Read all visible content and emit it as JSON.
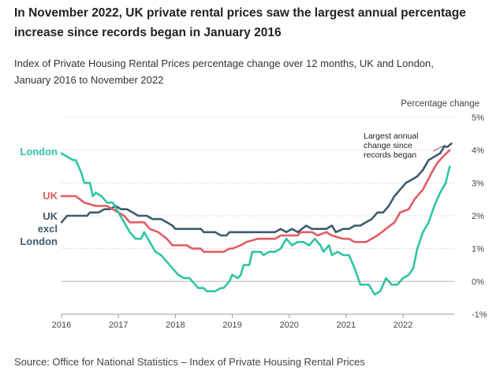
{
  "header": {
    "title": "In November 2022, UK private rental prices saw the largest annual percentage increase since records began in January 2016",
    "subtitle": "Index of Private Housing Rental Prices percentage change over 12 months, UK and London, January 2016 to November 2022"
  },
  "footer": {
    "source": "Source: Office for National Statistics – Index of Private Housing Rental Prices"
  },
  "chart_data": {
    "type": "line",
    "title": "",
    "ylabel": "Percentage change",
    "xlabel": "",
    "ylim": [
      -1,
      5
    ],
    "xlim": [
      2016,
      2022.9
    ],
    "y_ticks": [
      5,
      4,
      3,
      2,
      1,
      0,
      -1
    ],
    "y_tick_labels": [
      "5%",
      "4%",
      "3%",
      "2%",
      "1%",
      "0%",
      "-1%"
    ],
    "x_ticks": [
      2016,
      2017,
      2018,
      2019,
      2020,
      2021,
      2022
    ],
    "x_tick_labels": [
      "2016",
      "2017",
      "2018",
      "2019",
      "2020",
      "2021",
      "2022"
    ],
    "annotation": "Largest annual change since records began",
    "series": [
      {
        "name": "London",
        "color": "#2ec4a4",
        "label_lines": [
          "London"
        ],
        "points": [
          [
            2016.0,
            3.9
          ],
          [
            2016.1,
            3.8
          ],
          [
            2016.2,
            3.7
          ],
          [
            2016.25,
            3.7
          ],
          [
            2016.35,
            3.3
          ],
          [
            2016.4,
            3.0
          ],
          [
            2016.5,
            3.0
          ],
          [
            2016.55,
            2.6
          ],
          [
            2016.6,
            2.7
          ],
          [
            2016.7,
            2.6
          ],
          [
            2016.8,
            2.4
          ],
          [
            2016.9,
            2.4
          ],
          [
            2017.0,
            2.1
          ],
          [
            2017.1,
            1.8
          ],
          [
            2017.2,
            1.5
          ],
          [
            2017.3,
            1.3
          ],
          [
            2017.4,
            1.3
          ],
          [
            2017.45,
            1.5
          ],
          [
            2017.55,
            1.2
          ],
          [
            2017.65,
            0.9
          ],
          [
            2017.75,
            0.8
          ],
          [
            2017.85,
            0.6
          ],
          [
            2017.95,
            0.4
          ],
          [
            2018.05,
            0.2
          ],
          [
            2018.15,
            0.1
          ],
          [
            2018.25,
            0.1
          ],
          [
            2018.3,
            0.0
          ],
          [
            2018.4,
            -0.2
          ],
          [
            2018.5,
            -0.2
          ],
          [
            2018.55,
            -0.3
          ],
          [
            2018.7,
            -0.3
          ],
          [
            2018.8,
            -0.2
          ],
          [
            2018.85,
            -0.2
          ],
          [
            2018.95,
            0.0
          ],
          [
            2019.0,
            0.2
          ],
          [
            2019.1,
            0.1
          ],
          [
            2019.15,
            0.2
          ],
          [
            2019.2,
            0.5
          ],
          [
            2019.3,
            0.5
          ],
          [
            2019.35,
            0.9
          ],
          [
            2019.5,
            0.9
          ],
          [
            2019.55,
            0.8
          ],
          [
            2019.65,
            0.9
          ],
          [
            2019.75,
            0.9
          ],
          [
            2019.85,
            1.0
          ],
          [
            2019.95,
            1.3
          ],
          [
            2020.05,
            1.1
          ],
          [
            2020.15,
            1.2
          ],
          [
            2020.25,
            1.2
          ],
          [
            2020.35,
            1.1
          ],
          [
            2020.45,
            1.3
          ],
          [
            2020.55,
            1.1
          ],
          [
            2020.6,
            0.9
          ],
          [
            2020.7,
            1.1
          ],
          [
            2020.75,
            0.8
          ],
          [
            2020.85,
            0.9
          ],
          [
            2020.95,
            0.8
          ],
          [
            2021.05,
            0.8
          ],
          [
            2021.15,
            0.4
          ],
          [
            2021.25,
            -0.1
          ],
          [
            2021.4,
            -0.1
          ],
          [
            2021.5,
            -0.4
          ],
          [
            2021.6,
            -0.3
          ],
          [
            2021.7,
            0.1
          ],
          [
            2021.8,
            -0.1
          ],
          [
            2021.9,
            -0.1
          ],
          [
            2022.0,
            0.1
          ],
          [
            2022.1,
            0.2
          ],
          [
            2022.18,
            0.4
          ],
          [
            2022.25,
            1.0
          ],
          [
            2022.35,
            1.5
          ],
          [
            2022.45,
            1.8
          ],
          [
            2022.55,
            2.3
          ],
          [
            2022.65,
            2.7
          ],
          [
            2022.75,
            3.0
          ],
          [
            2022.82,
            3.5
          ]
        ]
      },
      {
        "name": "UK",
        "color": "#e35a63",
        "label_lines": [
          "UK"
        ],
        "points": [
          [
            2016.0,
            2.6
          ],
          [
            2016.25,
            2.6
          ],
          [
            2016.4,
            2.4
          ],
          [
            2016.6,
            2.3
          ],
          [
            2016.8,
            2.3
          ],
          [
            2016.9,
            2.2
          ],
          [
            2017.0,
            2.1
          ],
          [
            2017.1,
            2.0
          ],
          [
            2017.2,
            1.8
          ],
          [
            2017.45,
            1.8
          ],
          [
            2017.55,
            1.6
          ],
          [
            2017.7,
            1.5
          ],
          [
            2017.85,
            1.3
          ],
          [
            2017.95,
            1.1
          ],
          [
            2018.1,
            1.1
          ],
          [
            2018.2,
            1.1
          ],
          [
            2018.3,
            1.0
          ],
          [
            2018.45,
            1.0
          ],
          [
            2018.5,
            0.9
          ],
          [
            2018.85,
            0.9
          ],
          [
            2018.95,
            1.0
          ],
          [
            2019.0,
            1.0
          ],
          [
            2019.15,
            1.1
          ],
          [
            2019.25,
            1.2
          ],
          [
            2019.45,
            1.3
          ],
          [
            2019.75,
            1.3
          ],
          [
            2019.85,
            1.4
          ],
          [
            2019.95,
            1.4
          ],
          [
            2020.05,
            1.4
          ],
          [
            2020.15,
            1.4
          ],
          [
            2020.2,
            1.5
          ],
          [
            2020.4,
            1.5
          ],
          [
            2020.5,
            1.4
          ],
          [
            2020.65,
            1.5
          ],
          [
            2020.75,
            1.4
          ],
          [
            2020.95,
            1.3
          ],
          [
            2021.05,
            1.3
          ],
          [
            2021.15,
            1.2
          ],
          [
            2021.35,
            1.2
          ],
          [
            2021.45,
            1.3
          ],
          [
            2021.55,
            1.4
          ],
          [
            2021.7,
            1.6
          ],
          [
            2021.85,
            1.8
          ],
          [
            2021.95,
            2.1
          ],
          [
            2022.1,
            2.2
          ],
          [
            2022.2,
            2.5
          ],
          [
            2022.35,
            2.8
          ],
          [
            2022.5,
            3.3
          ],
          [
            2022.6,
            3.6
          ],
          [
            2022.7,
            3.8
          ],
          [
            2022.82,
            4.0
          ]
        ]
      },
      {
        "name": "UK excl London",
        "color": "#3f5a6c",
        "label_lines": [
          "UK",
          "excl",
          "London"
        ],
        "points": [
          [
            2016.0,
            1.8
          ],
          [
            2016.1,
            2.0
          ],
          [
            2016.45,
            2.0
          ],
          [
            2016.5,
            2.1
          ],
          [
            2016.65,
            2.1
          ],
          [
            2016.75,
            2.2
          ],
          [
            2016.85,
            2.2
          ],
          [
            2016.95,
            2.3
          ],
          [
            2017.05,
            2.2
          ],
          [
            2017.15,
            2.2
          ],
          [
            2017.25,
            2.1
          ],
          [
            2017.35,
            2.0
          ],
          [
            2017.5,
            2.0
          ],
          [
            2017.6,
            1.9
          ],
          [
            2017.75,
            1.9
          ],
          [
            2017.85,
            1.8
          ],
          [
            2017.95,
            1.7
          ],
          [
            2018.0,
            1.6
          ],
          [
            2018.45,
            1.6
          ],
          [
            2018.5,
            1.5
          ],
          [
            2018.7,
            1.5
          ],
          [
            2018.8,
            1.4
          ],
          [
            2018.9,
            1.4
          ],
          [
            2018.95,
            1.5
          ],
          [
            2019.75,
            1.5
          ],
          [
            2019.85,
            1.6
          ],
          [
            2019.95,
            1.5
          ],
          [
            2020.05,
            1.6
          ],
          [
            2020.15,
            1.5
          ],
          [
            2020.3,
            1.7
          ],
          [
            2020.4,
            1.6
          ],
          [
            2020.65,
            1.6
          ],
          [
            2020.75,
            1.7
          ],
          [
            2020.82,
            1.5
          ],
          [
            2020.95,
            1.6
          ],
          [
            2021.05,
            1.6
          ],
          [
            2021.15,
            1.7
          ],
          [
            2021.25,
            1.7
          ],
          [
            2021.35,
            1.8
          ],
          [
            2021.45,
            1.9
          ],
          [
            2021.55,
            2.1
          ],
          [
            2021.65,
            2.1
          ],
          [
            2021.75,
            2.3
          ],
          [
            2021.85,
            2.6
          ],
          [
            2021.95,
            2.8
          ],
          [
            2022.05,
            3.0
          ],
          [
            2022.15,
            3.1
          ],
          [
            2022.25,
            3.2
          ],
          [
            2022.35,
            3.4
          ],
          [
            2022.45,
            3.7
          ],
          [
            2022.55,
            3.8
          ],
          [
            2022.65,
            3.9
          ],
          [
            2022.72,
            4.1
          ],
          [
            2022.78,
            4.1
          ],
          [
            2022.85,
            4.2
          ]
        ]
      }
    ]
  }
}
